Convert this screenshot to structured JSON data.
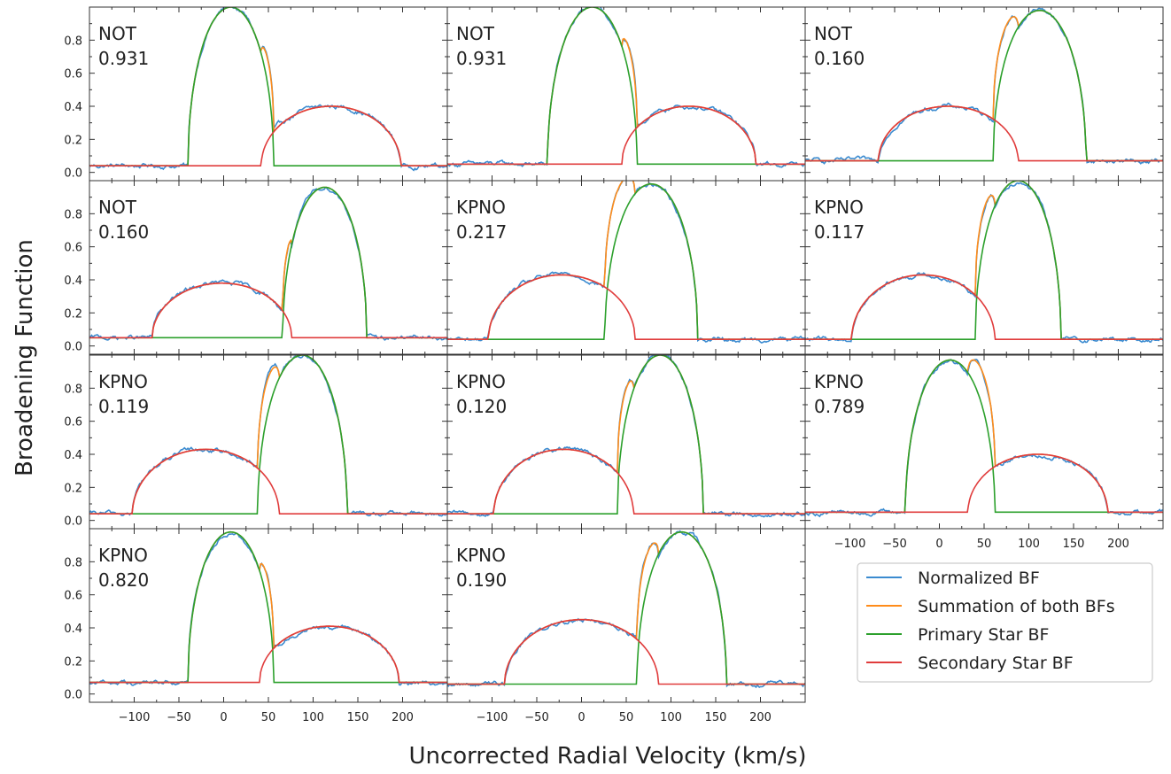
{
  "figure": {
    "ylabel": "Broadening Function",
    "xlabel": "Uncorrected Radial Velocity (km/s)"
  },
  "legend": {
    "placement": "lower-right",
    "entries": [
      {
        "label": "Normalized BF",
        "color": "#3b8bd0"
      },
      {
        "label": "Summation of both BFs",
        "color": "#ff8c1a"
      },
      {
        "label": "Primary Star BF",
        "color": "#2ca02c"
      },
      {
        "label": "Secondary Star BF",
        "color": "#e03c3c"
      }
    ]
  },
  "chart_data": {
    "type": "line",
    "layout": "4x3 grid of panels with shared axes",
    "xlim": [
      -150,
      250
    ],
    "ylim": [
      -0.05,
      1.0
    ],
    "xticks": [
      -100,
      -50,
      0,
      50,
      100,
      150,
      200
    ],
    "xtick_labels": [
      "−100",
      "−50",
      "0",
      "50",
      "100",
      "150",
      "200"
    ],
    "yticks": [
      0.0,
      0.2,
      0.4,
      0.6,
      0.8
    ],
    "ytick_labels": [
      "0.0",
      "0.2",
      "0.4",
      "0.6",
      "0.8"
    ],
    "xlabel": "Uncorrected Radial Velocity (km/s)",
    "ylabel": "Broadening Function",
    "series_names": [
      "Normalized BF",
      "Summation of both BFs",
      "Primary Star BF",
      "Secondary Star BF"
    ],
    "panels": [
      {
        "site": "NOT",
        "phase": "0.931",
        "baseline": 0.04,
        "primary": {
          "center": 8,
          "halfwidth": 48,
          "height": 0.96
        },
        "secondary": {
          "center": 120,
          "halfwidth": 78,
          "height": 0.36
        }
      },
      {
        "site": "NOT",
        "phase": "0.931",
        "baseline": 0.05,
        "primary": {
          "center": 12,
          "halfwidth": 50,
          "height": 0.95
        },
        "secondary": {
          "center": 120,
          "halfwidth": 75,
          "height": 0.35
        }
      },
      {
        "site": "NOT",
        "phase": "0.160",
        "baseline": 0.07,
        "primary": {
          "center": 112,
          "halfwidth": 52,
          "height": 0.91
        },
        "secondary": {
          "center": 10,
          "halfwidth": 78,
          "height": 0.33
        }
      },
      {
        "site": "NOT",
        "phase": "0.160",
        "baseline": 0.05,
        "primary": {
          "center": 113,
          "halfwidth": 47,
          "height": 0.91
        },
        "secondary": {
          "center": -2,
          "halfwidth": 78,
          "height": 0.33
        }
      },
      {
        "site": "KPNO",
        "phase": "0.217",
        "baseline": 0.04,
        "primary": {
          "center": 78,
          "halfwidth": 52,
          "height": 0.94
        },
        "secondary": {
          "center": -22,
          "halfwidth": 82,
          "height": 0.39
        }
      },
      {
        "site": "KPNO",
        "phase": "0.117",
        "baseline": 0.04,
        "primary": {
          "center": 88,
          "halfwidth": 48,
          "height": 0.96
        },
        "secondary": {
          "center": -18,
          "halfwidth": 80,
          "height": 0.39
        }
      },
      {
        "site": "KPNO",
        "phase": "0.119",
        "baseline": 0.04,
        "primary": {
          "center": 88,
          "halfwidth": 50,
          "height": 0.96
        },
        "secondary": {
          "center": -20,
          "halfwidth": 82,
          "height": 0.39
        }
      },
      {
        "site": "KPNO",
        "phase": "0.120",
        "baseline": 0.04,
        "primary": {
          "center": 88,
          "halfwidth": 48,
          "height": 0.96
        },
        "secondary": {
          "center": -20,
          "halfwidth": 78,
          "height": 0.39
        }
      },
      {
        "site": "KPNO",
        "phase": "0.789",
        "baseline": 0.05,
        "primary": {
          "center": 12,
          "halfwidth": 50,
          "height": 0.92
        },
        "secondary": {
          "center": 110,
          "halfwidth": 78,
          "height": 0.35
        }
      },
      {
        "site": "KPNO",
        "phase": "0.820",
        "baseline": 0.07,
        "primary": {
          "center": 8,
          "halfwidth": 48,
          "height": 0.91
        },
        "secondary": {
          "center": 118,
          "halfwidth": 78,
          "height": 0.34
        }
      },
      {
        "site": "KPNO",
        "phase": "0.190",
        "baseline": 0.06,
        "primary": {
          "center": 112,
          "halfwidth": 50,
          "height": 0.92
        },
        "secondary": {
          "center": 0,
          "halfwidth": 86,
          "height": 0.39
        }
      }
    ]
  }
}
